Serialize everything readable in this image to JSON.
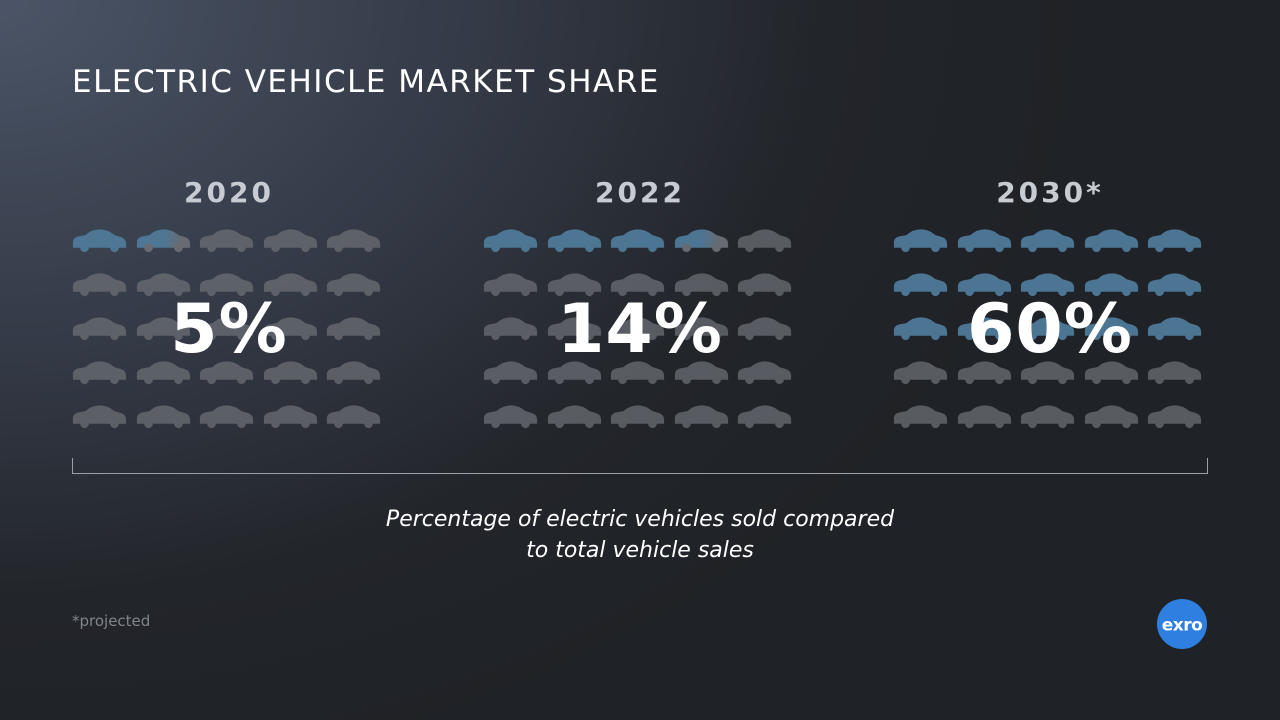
{
  "title": "ELECTRIC VEHICLE MARKET SHARE",
  "panels": [
    {
      "year": "2020",
      "percent_label": "5%",
      "highlighted_cars": 1.5
    },
    {
      "year": "2022",
      "percent_label": "14%",
      "highlighted_cars": 3.5
    },
    {
      "year": "2030*",
      "percent_label": "60%",
      "highlighted_cars": 15
    }
  ],
  "caption": {
    "line1": "Percentage of electric vehicles sold compared",
    "line2": "to total vehicle sales"
  },
  "footnote": "*projected",
  "logo_text": "exro",
  "colors": {
    "ev_car": "#4f7a99",
    "other_car": "#6b6e74",
    "logo_bg": "#2f7fe0"
  },
  "chart_data": {
    "type": "pictograph",
    "title": "ELECTRIC VEHICLE MARKET SHARE",
    "categories": [
      "2020",
      "2022",
      "2030*"
    ],
    "values": [
      5,
      14,
      60
    ],
    "unit": "%",
    "icons_per_panel": 25,
    "annotation": "Percentage of electric vehicles sold compared to total vehicle sales",
    "footnote": "*projected"
  }
}
